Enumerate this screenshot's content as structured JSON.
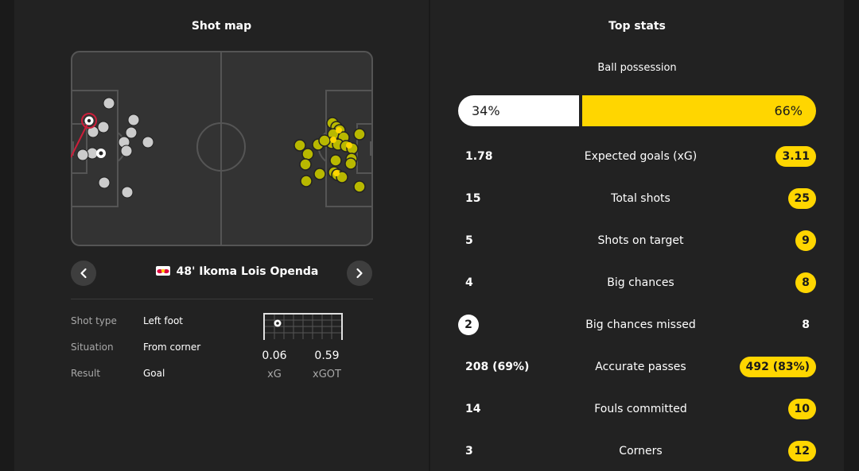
{
  "shot_map": {
    "title": "Shot map",
    "selected_shot": {
      "minute": "48'",
      "player": "Ikoma Lois Openda"
    },
    "details": [
      {
        "label": "Shot type",
        "value": "Left foot"
      },
      {
        "label": "Situation",
        "value": "From corner"
      },
      {
        "label": "Result",
        "value": "Goal"
      }
    ],
    "xg": {
      "value": "0.06",
      "label": "xG"
    },
    "xgot": {
      "value": "0.59",
      "label": "xGOT"
    },
    "colors": {
      "home_shot": "#cccccc",
      "away_shot": "#ffd600",
      "pitch": "#333333",
      "line": "#555555",
      "highlight": "#cc1e3a"
    }
  },
  "top_stats": {
    "title": "Top stats",
    "possession": {
      "label": "Ball possession",
      "home": "34%",
      "away": "66%",
      "home_pct": 34,
      "away_pct": 66
    },
    "rows": [
      {
        "name": "Expected goals (xG)",
        "home": "1.78",
        "away": "3.11",
        "highlight": "away"
      },
      {
        "name": "Total shots",
        "home": "15",
        "away": "25",
        "highlight": "away"
      },
      {
        "name": "Shots on target",
        "home": "5",
        "away": "9",
        "highlight": "away"
      },
      {
        "name": "Big chances",
        "home": "4",
        "away": "8",
        "highlight": "away"
      },
      {
        "name": "Big chances missed",
        "home": "2",
        "away": "8",
        "highlight": "home"
      },
      {
        "name": "Accurate passes",
        "home": "208 (69%)",
        "away": "492 (83%)",
        "highlight": "away"
      },
      {
        "name": "Fouls committed",
        "home": "14",
        "away": "10",
        "highlight": "away"
      },
      {
        "name": "Corners",
        "home": "3",
        "away": "12",
        "highlight": "away"
      }
    ]
  }
}
